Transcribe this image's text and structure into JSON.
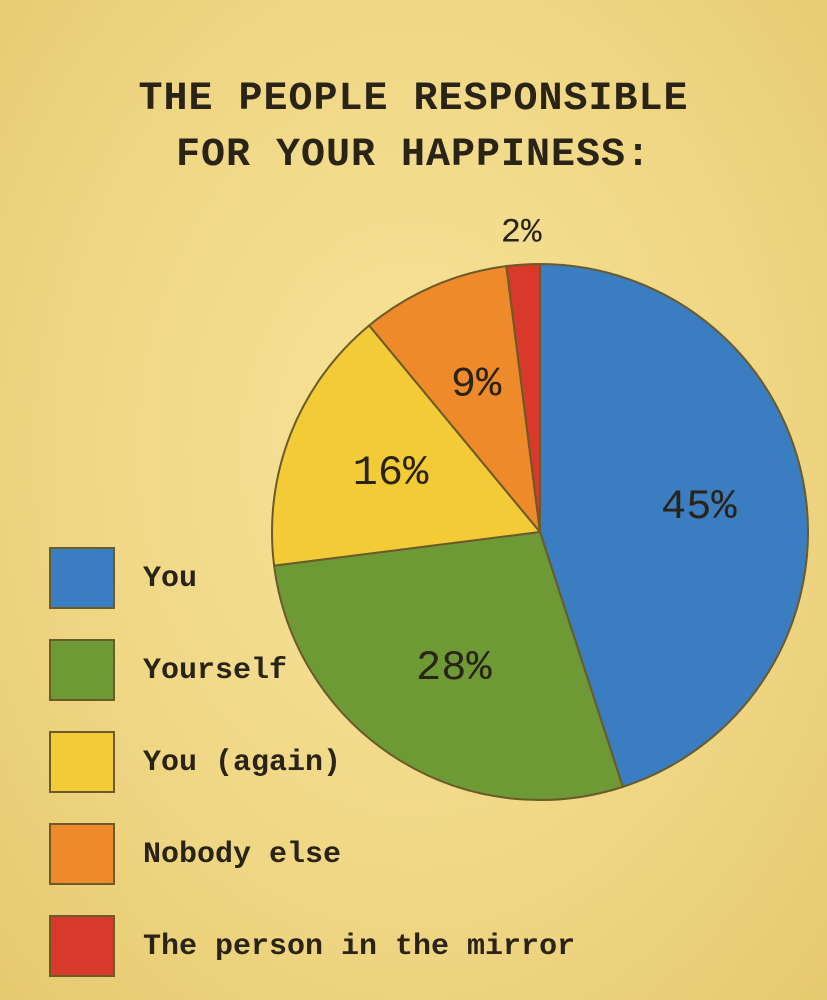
{
  "chart_data": {
    "type": "pie",
    "title": "THE PEOPLE RESPONSIBLE FOR YOUR HAPPINESS:",
    "categories": [
      "You",
      "Yourself",
      "You (again)",
      "Nobody else",
      "The person in the mirror"
    ],
    "values": [
      45,
      28,
      16,
      9,
      2
    ],
    "value_labels": [
      "45%",
      "28%",
      "16%",
      "9%",
      "2%"
    ],
    "colors": [
      "#3a7dc0",
      "#6e9a36",
      "#f3cb36",
      "#ee8a2a",
      "#d8392b"
    ]
  }
}
